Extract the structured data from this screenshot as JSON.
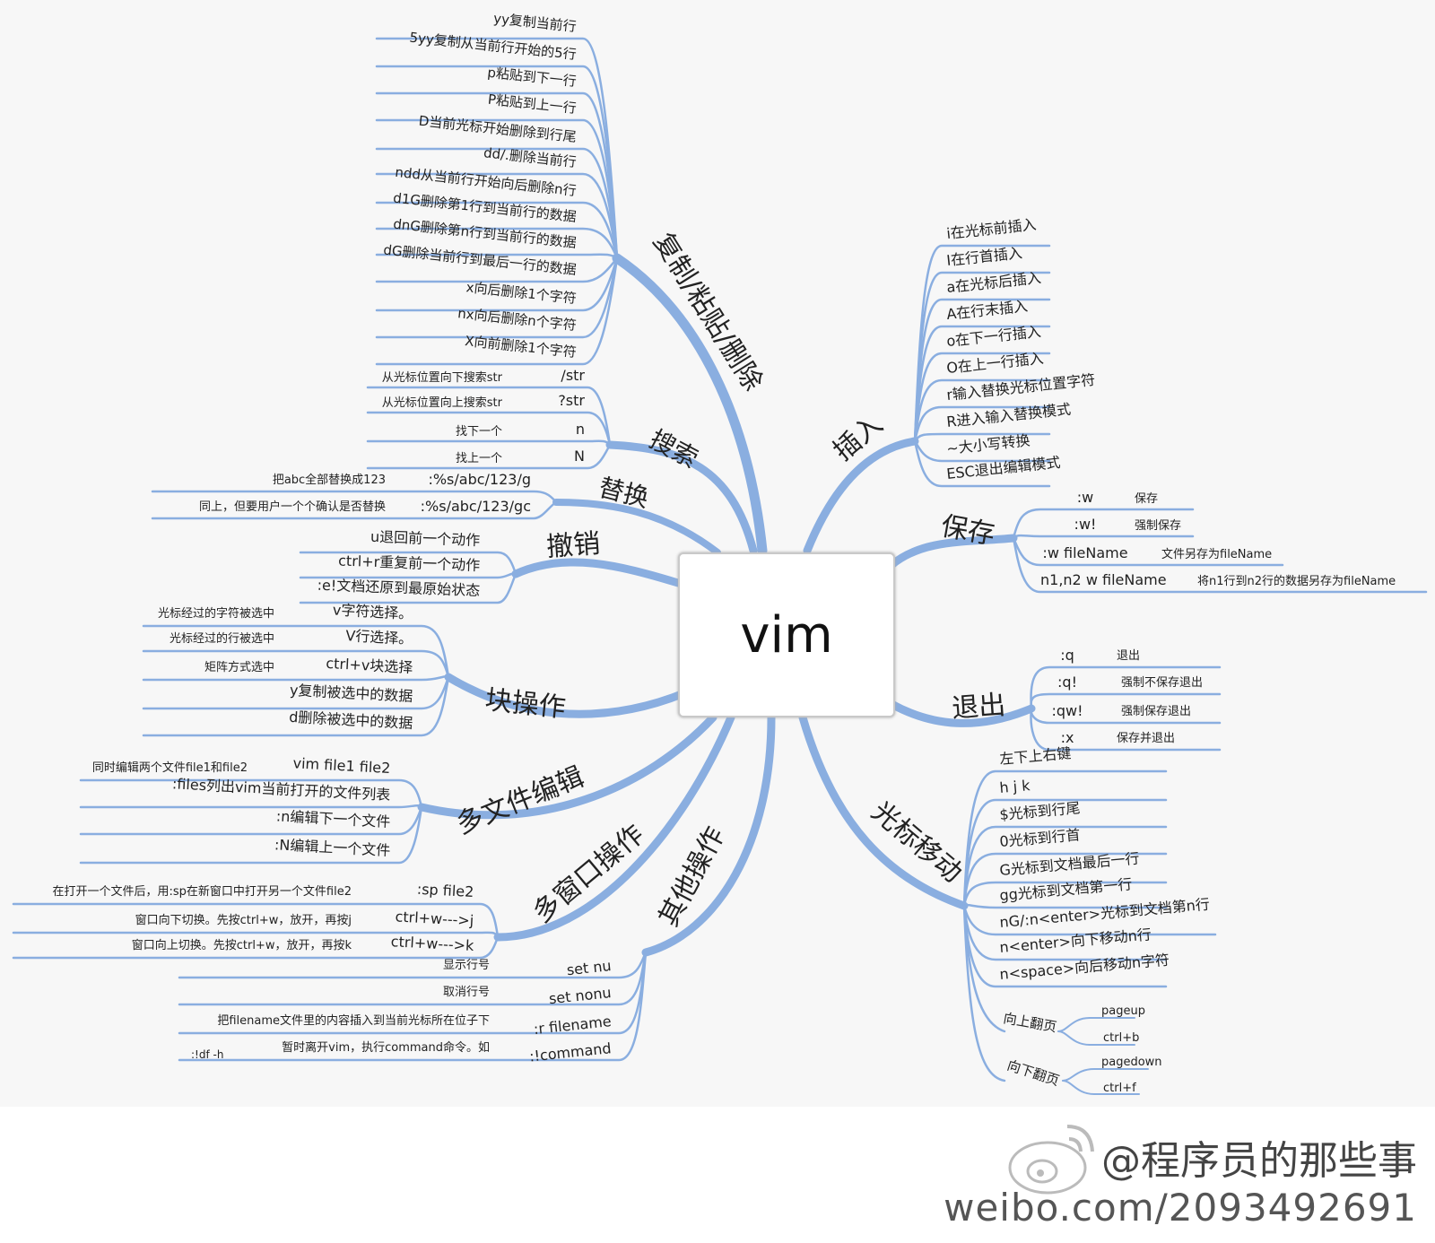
{
  "center": "vim",
  "branches": {
    "copy": {
      "label": "复制/粘贴/删除",
      "items": [
        "yy复制当前行",
        "5yy复制从当前行开始的5行",
        "p粘贴到下一行",
        "P粘贴到上一行",
        "D当前光标开始删除到行尾",
        "dd/.删除当前行",
        "ndd从当前行开始向后删除n行",
        "d1G删除第1行到当前行的数据",
        "dnG删除第n行到当前行的数据",
        "dG删除当前行到最后一行的数据",
        "x向后删除1个字符",
        "nx向后删除n个字符",
        "X向前删除1个字符"
      ]
    },
    "search": {
      "label": "搜索",
      "items": [
        {
          "cmd": "/str",
          "desc": "从光标位置向下搜索str"
        },
        {
          "cmd": "?str",
          "desc": "从光标位置向上搜索str"
        },
        {
          "cmd": "n",
          "desc": "找下一个"
        },
        {
          "cmd": "N",
          "desc": "找上一个"
        }
      ]
    },
    "replace": {
      "label": "替换",
      "items": [
        {
          "cmd": ":%s/abc/123/g",
          "desc": "把abc全部替换成123"
        },
        {
          "cmd": ":%s/abc/123/gc",
          "desc": "同上，但要用户一个个确认是否替换"
        }
      ]
    },
    "undo": {
      "label": "撤销",
      "items": [
        "u退回前一个动作",
        "ctrl+r重复前一个动作",
        ":e!文档还原到最原始状态"
      ]
    },
    "block": {
      "label": "块操作",
      "items": [
        {
          "cmd": "v字符选择。",
          "desc": "光标经过的字符被选中"
        },
        {
          "cmd": "V行选择。",
          "desc": "光标经过的行被选中"
        },
        {
          "cmd": "ctrl+v块选择",
          "desc": "矩阵方式选中"
        },
        {
          "cmd": "y复制被选中的数据",
          "desc": ""
        },
        {
          "cmd": "d删除被选中的数据",
          "desc": ""
        }
      ]
    },
    "multifile": {
      "label": "多文件编辑",
      "items": [
        {
          "cmd": "vim file1 file2",
          "desc": "同时编辑两个文件file1和file2"
        },
        {
          "cmd": ":files列出vim当前打开的文件列表",
          "desc": ""
        },
        {
          "cmd": ":n编辑下一个文件",
          "desc": ""
        },
        {
          "cmd": ":N编辑上一个文件",
          "desc": ""
        }
      ]
    },
    "multiwin": {
      "label": "多窗口操作",
      "items": [
        {
          "cmd": ":sp file2",
          "desc": "在打开一个文件后，用:sp在新窗口中打开另一个文件file2"
        },
        {
          "cmd": "ctrl+w--->j",
          "desc": "窗口向下切换。先按ctrl+w，放开，再按j"
        },
        {
          "cmd": "ctrl+w--->k",
          "desc": "窗口向上切换。先按ctrl+w，放开，再按k"
        }
      ]
    },
    "other": {
      "label": "其他操作",
      "items": [
        {
          "cmd": "set nu",
          "desc": "显示行号"
        },
        {
          "cmd": "set nonu",
          "desc": "取消行号"
        },
        {
          "cmd": ":r filename",
          "desc": "把filename文件里的内容插入到当前光标所在位子下"
        },
        {
          "cmd": ":!command",
          "desc": "暂时离开vim，执行command命令。如",
          "extra": ":!df -h"
        }
      ]
    },
    "insert": {
      "label": "插入",
      "items": [
        "i在光标前插入",
        "I在行首插入",
        "a在光标后插入",
        "A在行末插入",
        "o在下一行插入",
        "O在上一行插入",
        "r输入替换光标位置字符",
        "R进入输入替换模式",
        "~大小写转换",
        "ESC退出编辑模式"
      ]
    },
    "save": {
      "label": "保存",
      "items": [
        {
          "cmd": ":w",
          "desc": "保存"
        },
        {
          "cmd": ":w!",
          "desc": "强制保存"
        },
        {
          "cmd": ":w fileName",
          "desc": "文件另存为fileName"
        },
        {
          "cmd": "n1,n2 w fileName",
          "desc": "将n1行到n2行的数据另存为fileName"
        }
      ]
    },
    "quit": {
      "label": "退出",
      "items": [
        {
          "cmd": ":q",
          "desc": "退出"
        },
        {
          "cmd": ":q!",
          "desc": "强制不保存退出"
        },
        {
          "cmd": ":qw!",
          "desc": "强制保存退出"
        },
        {
          "cmd": ":x",
          "desc": "保存并退出"
        }
      ]
    },
    "cursor": {
      "label": "光标移动",
      "items": [
        "左下上右键",
        "h   j   k",
        "$光标到行尾",
        "0光标到行首",
        "G光标到文档最后一行",
        "gg光标到文档第一行",
        "nG/:n<enter>光标到文档第n行",
        "n<enter>向下移动n行",
        "n<space>向后移动n字符"
      ],
      "pageup": {
        "label": "向上翻页",
        "keys": [
          "pageup",
          "ctrl+b"
        ]
      },
      "pagedown": {
        "label": "向下翻页",
        "keys": [
          "pagedown",
          "ctrl+f"
        ]
      }
    }
  },
  "watermark": {
    "handle": "@程序员的那些事",
    "url": "weibo.com/2093492691",
    "logo_icon": "weibo-logo-icon"
  },
  "colors": {
    "branch": "#8aaee0",
    "background": "#f7f7f7",
    "text": "#222222"
  }
}
